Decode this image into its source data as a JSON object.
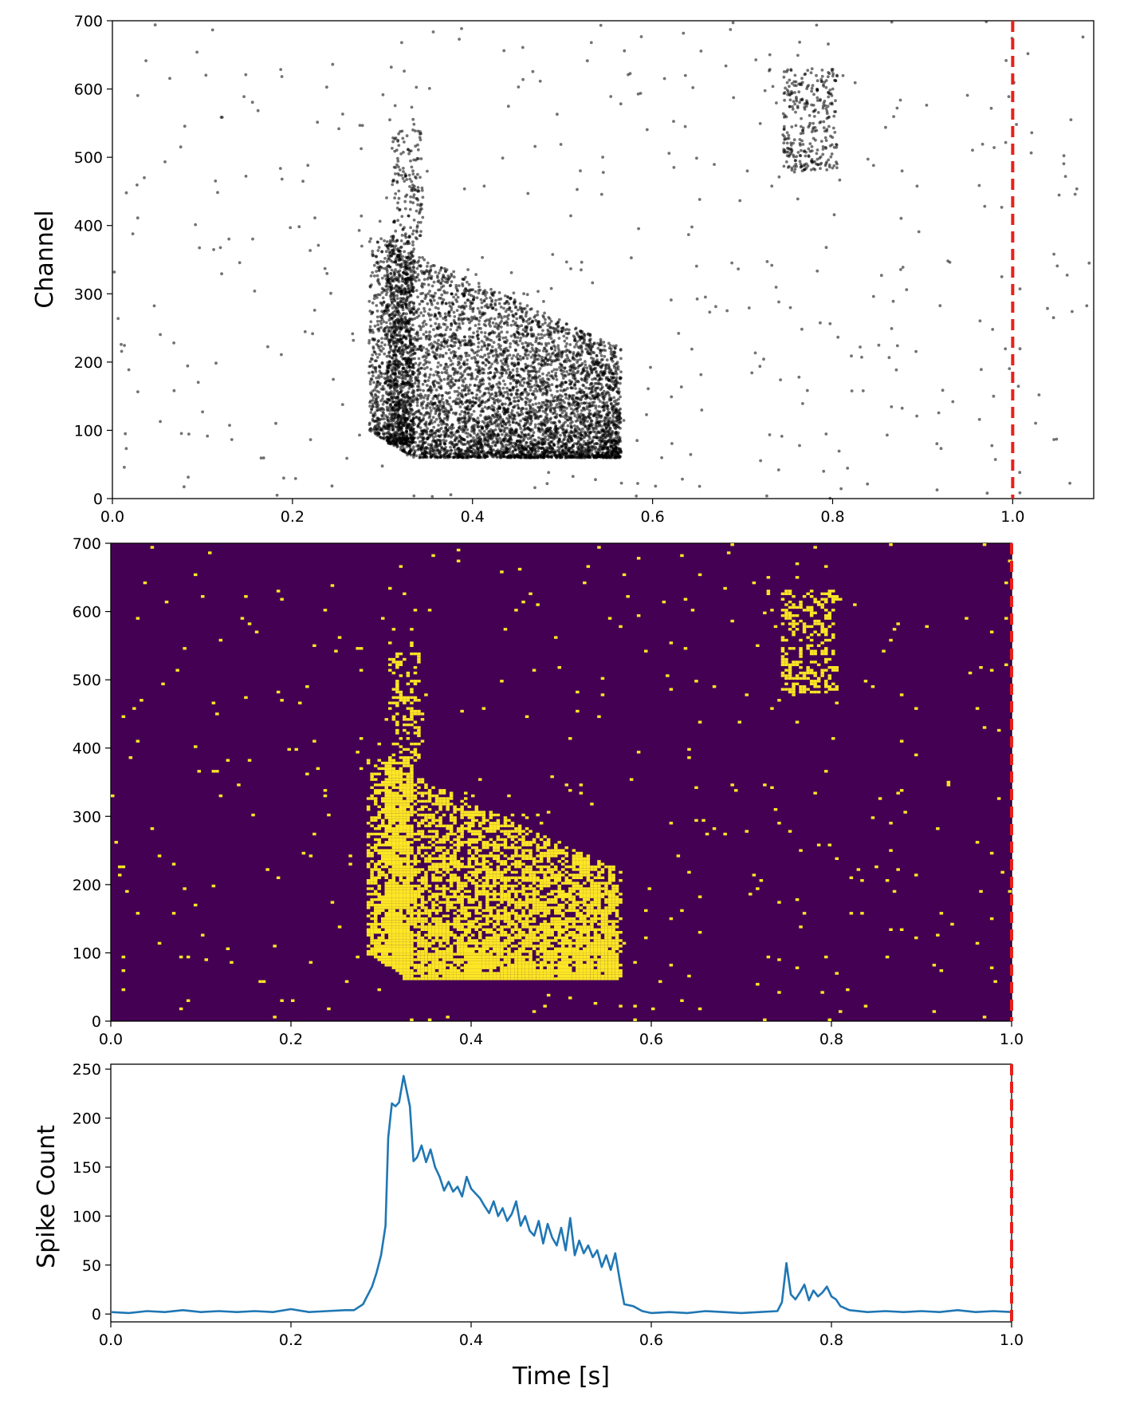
{
  "colors": {
    "raster_dot": "#000000",
    "heatmap_bg": "#440154",
    "heatmap_hit": "#fde725",
    "line": "#1f77b4",
    "marker": "#e8211a"
  },
  "chart_data": [
    {
      "type": "scatter",
      "panel": "raster",
      "title": "",
      "xlabel": "",
      "ylabel": "Channel",
      "xlim": [
        0.0,
        1.09
      ],
      "ylim": [
        0,
        700
      ],
      "xticks": [
        "0.0",
        "0.2",
        "0.4",
        "0.6",
        "0.8",
        "1.0"
      ],
      "yticks": [
        "0",
        "100",
        "200",
        "300",
        "400",
        "500",
        "600",
        "700"
      ],
      "marker_x": 1.0,
      "marker_style": "red dashed vertical line",
      "grid": false,
      "description_of_points": "sparse background spikes everywhere; dense burst 0.28-0.57 s (channels ~60-380, strips to ~540 near 0.31-0.34 s); second cluster 0.74-0.81 s at channels ~480-630"
    },
    {
      "type": "heatmap",
      "panel": "binned",
      "title": "",
      "xlabel": "",
      "ylabel": "",
      "xlim": [
        0.0,
        1.0
      ],
      "ylim": [
        0,
        700
      ],
      "xticks": [
        "0.0",
        "0.2",
        "0.4",
        "0.6",
        "0.8",
        "1.0"
      ],
      "yticks": [
        "0",
        "100",
        "200",
        "300",
        "400",
        "500",
        "600",
        "700"
      ],
      "colormap": "viridis (binary)",
      "marker_x": 1.0,
      "grid": false
    },
    {
      "type": "line",
      "panel": "spike-count",
      "title": "",
      "xlabel": "Time [s]",
      "ylabel": "Spike Count",
      "xlim": [
        0.0,
        1.0
      ],
      "ylim": [
        -8,
        255
      ],
      "xticks": [
        "0.0",
        "0.2",
        "0.4",
        "0.6",
        "0.8",
        "1.0"
      ],
      "yticks": [
        "0",
        "50",
        "100",
        "150",
        "200",
        "250"
      ],
      "marker_x": 1.0,
      "grid": false,
      "series": [
        {
          "points": [
            [
              0.0,
              2
            ],
            [
              0.02,
              1
            ],
            [
              0.04,
              3
            ],
            [
              0.06,
              2
            ],
            [
              0.08,
              4
            ],
            [
              0.1,
              2
            ],
            [
              0.12,
              3
            ],
            [
              0.14,
              2
            ],
            [
              0.16,
              3
            ],
            [
              0.18,
              2
            ],
            [
              0.2,
              5
            ],
            [
              0.22,
              2
            ],
            [
              0.24,
              3
            ],
            [
              0.26,
              4
            ],
            [
              0.27,
              4
            ],
            [
              0.28,
              10
            ],
            [
              0.29,
              28
            ],
            [
              0.295,
              42
            ],
            [
              0.3,
              60
            ],
            [
              0.305,
              90
            ],
            [
              0.308,
              180
            ],
            [
              0.312,
              215
            ],
            [
              0.316,
              212
            ],
            [
              0.32,
              216
            ],
            [
              0.325,
              243
            ],
            [
              0.332,
              212
            ],
            [
              0.336,
              156
            ],
            [
              0.34,
              160
            ],
            [
              0.345,
              172
            ],
            [
              0.35,
              155
            ],
            [
              0.355,
              168
            ],
            [
              0.36,
              150
            ],
            [
              0.365,
              140
            ],
            [
              0.37,
              126
            ],
            [
              0.375,
              135
            ],
            [
              0.38,
              125
            ],
            [
              0.385,
              130
            ],
            [
              0.39,
              120
            ],
            [
              0.395,
              140
            ],
            [
              0.4,
              128
            ],
            [
              0.41,
              118
            ],
            [
              0.415,
              110
            ],
            [
              0.42,
              103
            ],
            [
              0.425,
              115
            ],
            [
              0.43,
              100
            ],
            [
              0.435,
              108
            ],
            [
              0.44,
              95
            ],
            [
              0.445,
              102
            ],
            [
              0.45,
              115
            ],
            [
              0.455,
              90
            ],
            [
              0.46,
              100
            ],
            [
              0.465,
              85
            ],
            [
              0.47,
              80
            ],
            [
              0.475,
              95
            ],
            [
              0.48,
              72
            ],
            [
              0.485,
              92
            ],
            [
              0.49,
              78
            ],
            [
              0.495,
              70
            ],
            [
              0.5,
              88
            ],
            [
              0.505,
              65
            ],
            [
              0.51,
              98
            ],
            [
              0.515,
              60
            ],
            [
              0.52,
              75
            ],
            [
              0.525,
              62
            ],
            [
              0.53,
              70
            ],
            [
              0.535,
              58
            ],
            [
              0.54,
              65
            ],
            [
              0.545,
              48
            ],
            [
              0.55,
              60
            ],
            [
              0.555,
              45
            ],
            [
              0.56,
              62
            ],
            [
              0.565,
              35
            ],
            [
              0.57,
              10
            ],
            [
              0.58,
              8
            ],
            [
              0.59,
              3
            ],
            [
              0.6,
              1
            ],
            [
              0.62,
              2
            ],
            [
              0.64,
              1
            ],
            [
              0.66,
              3
            ],
            [
              0.68,
              2
            ],
            [
              0.7,
              1
            ],
            [
              0.72,
              2
            ],
            [
              0.74,
              3
            ],
            [
              0.745,
              12
            ],
            [
              0.75,
              52
            ],
            [
              0.755,
              20
            ],
            [
              0.76,
              15
            ],
            [
              0.765,
              22
            ],
            [
              0.77,
              30
            ],
            [
              0.775,
              14
            ],
            [
              0.78,
              24
            ],
            [
              0.785,
              18
            ],
            [
              0.79,
              22
            ],
            [
              0.795,
              28
            ],
            [
              0.8,
              18
            ],
            [
              0.805,
              15
            ],
            [
              0.81,
              8
            ],
            [
              0.82,
              4
            ],
            [
              0.84,
              2
            ],
            [
              0.86,
              3
            ],
            [
              0.88,
              2
            ],
            [
              0.9,
              3
            ],
            [
              0.92,
              2
            ],
            [
              0.94,
              4
            ],
            [
              0.96,
              2
            ],
            [
              0.98,
              3
            ],
            [
              1.0,
              2
            ]
          ]
        }
      ]
    }
  ]
}
